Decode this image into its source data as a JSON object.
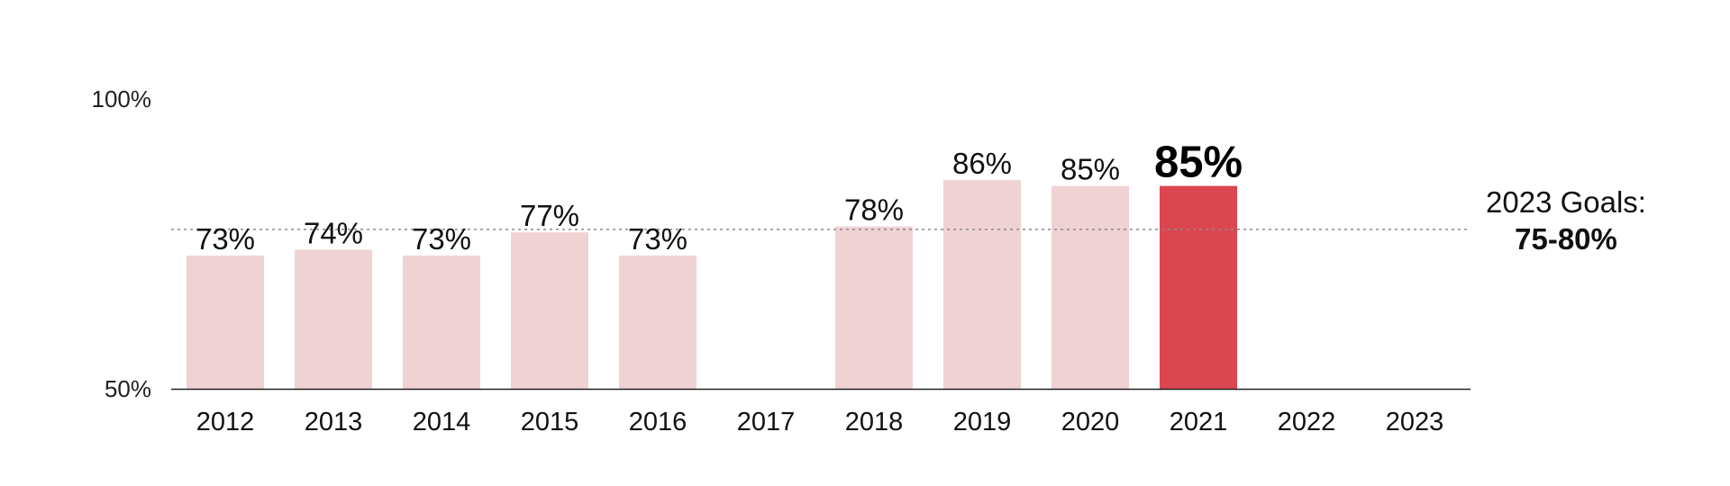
{
  "chart_data": {
    "type": "bar",
    "categories": [
      "2012",
      "2013",
      "2014",
      "2015",
      "2016",
      "2017",
      "2018",
      "2019",
      "2020",
      "2021",
      "2022",
      "2023"
    ],
    "values": [
      73,
      74,
      73,
      77,
      73,
      null,
      78,
      86,
      85,
      85,
      null,
      null
    ],
    "value_labels": [
      "73%",
      "74%",
      "73%",
      "77%",
      "73%",
      "",
      "78%",
      "86%",
      "85%",
      "85%",
      "",
      ""
    ],
    "highlight_category": "2021",
    "ylim": [
      50,
      100
    ],
    "yticks": [
      {
        "value": 50,
        "label": "50%"
      },
      {
        "value": 100,
        "label": "100%"
      }
    ],
    "reference_line": {
      "value": 77.5,
      "style": "dotted",
      "title": "2023 Goals:",
      "range": "75-80%"
    },
    "colors": {
      "bar": "#f0d1d4",
      "highlight_bar": "#db4651",
      "reference_line": "#8a8a8a",
      "axis": "#222222"
    },
    "title": "",
    "xlabel": "",
    "ylabel": "",
    "grid": false,
    "legend": "none"
  }
}
